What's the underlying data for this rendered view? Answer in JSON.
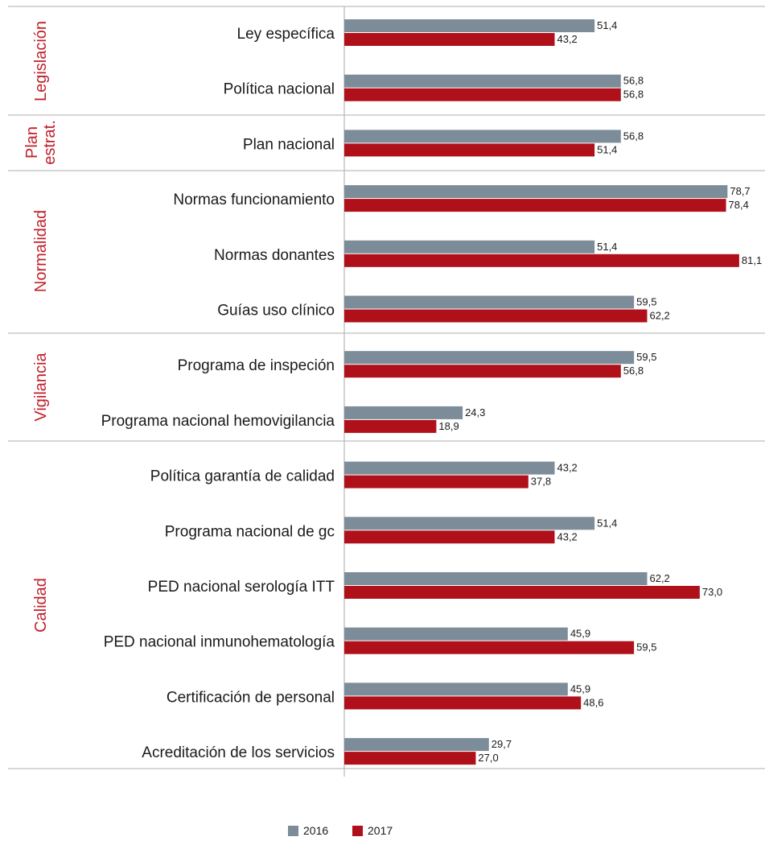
{
  "chart_data": {
    "type": "bar",
    "orientation": "horizontal",
    "title": "",
    "xlabel": "",
    "ylabel": "",
    "grid": false,
    "legend_position": "bottom",
    "colors": {
      "2016": "#7d8c99",
      "2017": "#b0101a",
      "group_label": "#c0202b",
      "divider": "#c8c8c8"
    },
    "groups": [
      {
        "label": "Legislación",
        "categories": [
          "Ley específica",
          "Política nacional"
        ]
      },
      {
        "label": "Plan\nestrat.",
        "categories": [
          "Plan nacional"
        ]
      },
      {
        "label": "Normalidad",
        "categories": [
          "Normas funcionamiento",
          "Normas donantes",
          "Guías uso clínico"
        ]
      },
      {
        "label": "Vigilancia",
        "categories": [
          "Programa de inspeción",
          "Programa nacional hemovigilancia"
        ]
      },
      {
        "label": "Calidad",
        "categories": [
          "Política garantía de calidad",
          "Programa nacional de gc",
          "PED nacional serología ITT",
          "PED nacional inmunohematología",
          "Certificación de personal",
          "Acreditación de los servicios"
        ]
      }
    ],
    "categories": [
      "Ley específica",
      "Política nacional",
      "Plan nacional",
      "Normas funcionamiento",
      "Normas donantes",
      "Guías uso clínico",
      "Programa de inspeción",
      "Programa nacional hemovigilancia",
      "Política garantía de calidad",
      "Programa nacional de gc",
      "PED nacional serología ITT",
      "PED nacional inmunohematología",
      "Certificación de personal",
      "Acreditación de los servicios"
    ],
    "series": [
      {
        "name": "2016",
        "values": [
          51.4,
          56.8,
          56.8,
          78.7,
          51.4,
          59.5,
          59.5,
          24.3,
          43.2,
          51.4,
          62.2,
          45.9,
          45.9,
          29.7
        ],
        "labels": [
          "51,4",
          "56,8",
          "56,8",
          "78,7",
          "51,4",
          "59,5",
          "59,5",
          "24,3",
          "43,2",
          "51,4",
          "62,2",
          "45,9",
          "45,9",
          "29,7"
        ]
      },
      {
        "name": "2017",
        "values": [
          43.2,
          56.8,
          51.4,
          78.4,
          81.1,
          62.2,
          56.8,
          18.9,
          37.8,
          43.2,
          73.0,
          59.5,
          48.6,
          27.0
        ],
        "labels": [
          "43,2",
          "56,8",
          "51,4",
          "78,4",
          "81,1",
          "62,2",
          "56,8",
          "18,9",
          "37,8",
          "43,2",
          "73,0",
          "59,5",
          "48,6",
          "27,0"
        ]
      }
    ],
    "xlim": [
      0,
      85
    ]
  }
}
